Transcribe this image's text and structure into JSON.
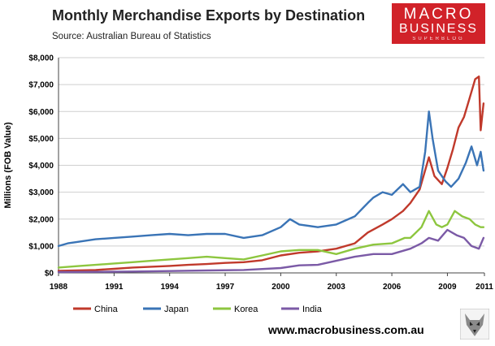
{
  "header": {
    "title": "Monthly Merchandise Exports by Destination",
    "source": "Source:  Australian Bureau of Statistics"
  },
  "logo": {
    "line1": "MACRO",
    "line2": "BUSINESS",
    "line3": "SUPERBLOG",
    "background": "#d12229"
  },
  "footer": {
    "url": "www.macrobusiness.com.au",
    "icon": "wolf-logo-icon"
  },
  "chart_data": {
    "type": "line",
    "ylabel": "Millions (FOB Value)",
    "xlabel": "",
    "xlim": [
      1988,
      2011
    ],
    "ylim": [
      0,
      8000
    ],
    "x_ticks": [
      "1988",
      "1991",
      "1994",
      "1997",
      "2000",
      "2003",
      "2006",
      "2009",
      "2011"
    ],
    "x_tick_values": [
      1988,
      1991,
      1994,
      1997,
      2000,
      2003,
      2006,
      2009,
      2011
    ],
    "y_ticks": [
      "$0",
      "$1,000",
      "$2,000",
      "$3,000",
      "$4,000",
      "$5,000",
      "$6,000",
      "$7,000",
      "$8,000"
    ],
    "y_tick_values": [
      0,
      1000,
      2000,
      3000,
      4000,
      5000,
      6000,
      7000,
      8000
    ],
    "grid": true,
    "legend_position": "bottom",
    "series": [
      {
        "name": "China",
        "color": "#c0392b",
        "x": [
          1988,
          1989,
          1990,
          1991,
          1992,
          1993,
          1994,
          1995,
          1996,
          1997,
          1998,
          1999,
          2000,
          2001,
          2002,
          2003,
          2004,
          2004.7,
          2005.5,
          2006,
          2006.6,
          2007,
          2007.5,
          2008,
          2008.3,
          2008.7,
          2009,
          2009.3,
          2009.6,
          2009.9,
          2010.2,
          2010.5,
          2010.7,
          2010.8,
          2010.95
        ],
        "y": [
          80,
          90,
          110,
          150,
          200,
          230,
          260,
          300,
          330,
          370,
          400,
          470,
          650,
          750,
          800,
          900,
          1100,
          1500,
          1800,
          2000,
          2300,
          2600,
          3100,
          4300,
          3600,
          3300,
          3900,
          4600,
          5400,
          5800,
          6500,
          7200,
          7300,
          5300,
          6300
        ]
      },
      {
        "name": "Japan",
        "color": "#3a74b6",
        "x": [
          1988,
          1988.5,
          1989,
          1990,
          1991,
          1992,
          1993,
          1994,
          1995,
          1996,
          1997,
          1998,
          1999,
          2000,
          2000.5,
          2001,
          2002,
          2003,
          2004,
          2004.7,
          2005,
          2005.5,
          2006,
          2006.6,
          2007,
          2007.5,
          2007.8,
          2008,
          2008.2,
          2008.5,
          2008.9,
          2009.2,
          2009.6,
          2010,
          2010.3,
          2010.6,
          2010.8,
          2010.95
        ],
        "y": [
          1000,
          1100,
          1150,
          1250,
          1300,
          1350,
          1400,
          1450,
          1400,
          1450,
          1450,
          1300,
          1400,
          1700,
          2000,
          1800,
          1700,
          1800,
          2100,
          2600,
          2800,
          3000,
          2900,
          3300,
          3000,
          3200,
          4500,
          6000,
          5000,
          3800,
          3400,
          3200,
          3500,
          4100,
          4700,
          4000,
          4500,
          3800
        ]
      },
      {
        "name": "Korea",
        "color": "#8dc63f",
        "x": [
          1988,
          1989,
          1990,
          1991,
          1992,
          1993,
          1994,
          1995,
          1996,
          1997,
          1998,
          1999,
          2000,
          2001,
          2002,
          2003,
          2004,
          2005,
          2006,
          2006.7,
          2007,
          2007.6,
          2008,
          2008.4,
          2008.7,
          2009,
          2009.4,
          2009.8,
          2010.2,
          2010.5,
          2010.8,
          2010.95
        ],
        "y": [
          200,
          250,
          300,
          350,
          400,
          450,
          500,
          550,
          600,
          550,
          500,
          650,
          800,
          850,
          850,
          700,
          900,
          1050,
          1100,
          1300,
          1300,
          1700,
          2300,
          1800,
          1700,
          1800,
          2300,
          2100,
          2000,
          1800,
          1700,
          1700
        ]
      },
      {
        "name": "India",
        "color": "#7b5aa6",
        "x": [
          1988,
          1990,
          1992,
          1994,
          1996,
          1998,
          2000,
          2001,
          2002,
          2003,
          2004,
          2005,
          2006,
          2007,
          2007.6,
          2008,
          2008.5,
          2009,
          2009.5,
          2009.9,
          2010.3,
          2010.7,
          2010.95
        ],
        "y": [
          30,
          40,
          50,
          70,
          90,
          110,
          180,
          280,
          300,
          450,
          600,
          700,
          700,
          900,
          1100,
          1300,
          1200,
          1600,
          1400,
          1300,
          1000,
          900,
          1300
        ]
      }
    ]
  }
}
